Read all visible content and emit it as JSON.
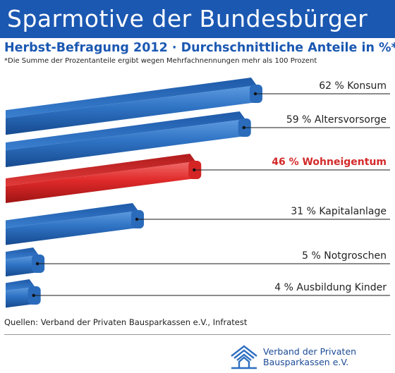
{
  "header": {
    "title": "Sparmotive der Bundesbürger",
    "subtitle": "Herbst-Befragung 2012 · Durchschnittliche Anteile in %*",
    "note": "*Die Summe der Prozentanteile ergibt wegen Mehrfachnennungen mehr als 100 Prozent"
  },
  "chart_data": {
    "type": "bar",
    "orientation": "horizontal",
    "unit": "%",
    "categories": [
      "Konsum",
      "Altersvorsorge",
      "Wohneigentum",
      "Kapitalanlage",
      "Notgroschen",
      "Ausbildung Kinder"
    ],
    "values": [
      62,
      59,
      46,
      31,
      5,
      4
    ],
    "labels": [
      "62 % Konsum",
      "59 % Altersvorsorge",
      "46 % Wohneigentum",
      "31 % Kapitalanlage",
      "5 % Notgroschen",
      "4 % Ausbildung Kinder"
    ],
    "highlight_index": 2,
    "colors": {
      "bar": "#2f73c4",
      "highlight": "#e02a2a",
      "highlight_text": "#d42a2a",
      "text": "#222222"
    },
    "grid": false,
    "legend": "none"
  },
  "footer": {
    "source": "Quellen: Verband der Privaten Bausparkassen e.V., Infratest",
    "org_line1": "Verband der Privaten",
    "org_line2": "Bausparkassen e.V."
  },
  "colors": {
    "title_bg": "#1b58b2",
    "brand": "#1b58b2"
  },
  "icons": {
    "logo": "house-logo-icon"
  }
}
